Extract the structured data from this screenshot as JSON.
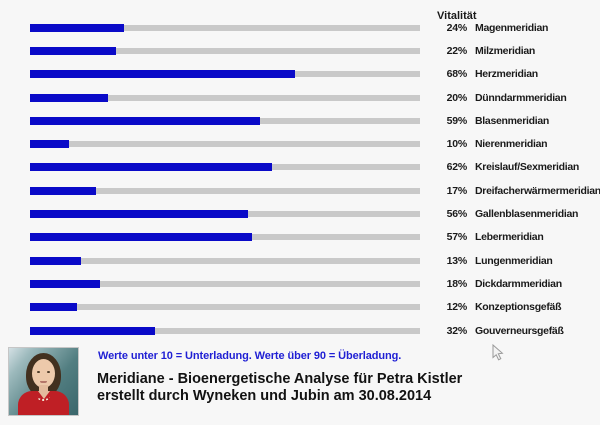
{
  "colors": {
    "background": "#f7f7f7",
    "bar_blue": "#0a0ac8",
    "track_gray": "#c9c9c9",
    "legend_blue": "#1f1fd4",
    "title_black": "#121212"
  },
  "icons": {
    "cursor": "mouse-cursor-arrow"
  },
  "chart_data": {
    "type": "bar",
    "orientation": "horizontal",
    "header": "Vitalität",
    "value_axis_max": 100,
    "unit": "%",
    "grid": false,
    "legend_position": "none",
    "rows": [
      {
        "value": 24,
        "value_label": "24%",
        "category": "Magenmeridian"
      },
      {
        "value": 22,
        "value_label": "22%",
        "category": "Milzmeridian"
      },
      {
        "value": 68,
        "value_label": "68%",
        "category": "Herzmeridian"
      },
      {
        "value": 20,
        "value_label": "20%",
        "category": "Dünndarmmeridian"
      },
      {
        "value": 59,
        "value_label": "59%",
        "category": "Blasenmeridian"
      },
      {
        "value": 10,
        "value_label": "10%",
        "category": "Nierenmeridian"
      },
      {
        "value": 62,
        "value_label": "62%",
        "category": "Kreislauf/Sexmeridian"
      },
      {
        "value": 17,
        "value_label": "17%",
        "category": "Dreifacherwärmermeridian"
      },
      {
        "value": 56,
        "value_label": "56%",
        "category": "Gallenblasenmeridian"
      },
      {
        "value": 57,
        "value_label": "57%",
        "category": "Lebermeridian"
      },
      {
        "value": 13,
        "value_label": "13%",
        "category": "Lungenmeridian"
      },
      {
        "value": 18,
        "value_label": "18%",
        "category": "Dickdarmmeridian"
      },
      {
        "value": 12,
        "value_label": "12%",
        "category": "Konzeptionsgefäß"
      },
      {
        "value": 32,
        "value_label": "32%",
        "category": "Gouverneursgefäß"
      }
    ]
  },
  "legend": {
    "text": "Werte unter 10 = Unterladung. Werte über 90 = Überladung."
  },
  "title": {
    "line1": "Meridiane - Bioenergetische Analyse für Petra Kistler",
    "line2": "erstellt durch Wyneken und Jubin am 30.08.2014"
  }
}
